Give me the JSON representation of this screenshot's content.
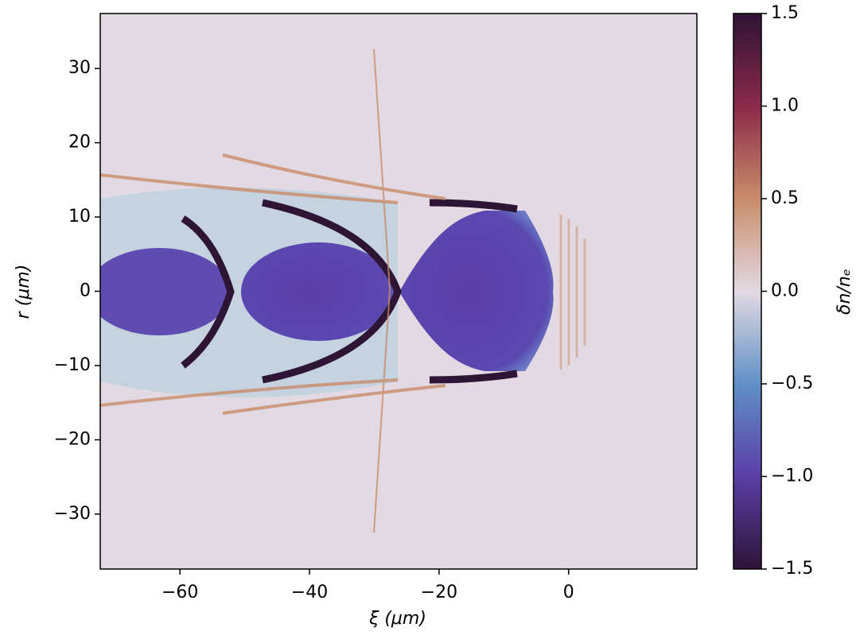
{
  "chart_data": {
    "type": "heatmap",
    "x_label": "ξ (μm)",
    "y_label": "r (μm)",
    "xlim": [
      -72.3,
      19.8
    ],
    "xticks": [
      {
        "value": -60,
        "label": "−60"
      },
      {
        "value": -40,
        "label": "−40"
      },
      {
        "value": -20,
        "label": "−20"
      },
      0
    ],
    "ylim": [
      -37.4,
      37.4
    ],
    "yticks": [
      30,
      20,
      10,
      0,
      {
        "value": -10,
        "label": "−10"
      },
      {
        "value": -20,
        "label": "−20"
      },
      {
        "value": -30,
        "label": "−30"
      }
    ],
    "colorbar": {
      "label": "δn/nₑ",
      "lim": [
        -1.5,
        1.5
      ],
      "ticks": [
        {
          "value": 1.5,
          "label": "1.5"
        },
        {
          "value": 1.0,
          "label": "1.0"
        },
        {
          "value": 0.5,
          "label": "0.5"
        },
        {
          "value": 0.0,
          "label": "0.0"
        },
        {
          "value": -0.5,
          "label": "−0.5"
        },
        {
          "value": -1.0,
          "label": "−1.0"
        },
        {
          "value": -1.5,
          "label": "−1.5"
        }
      ],
      "colors": [
        "#2d1537",
        "#5b3ea6",
        "#6090c6",
        "#e2d9e2",
        "#c88c6a",
        "#8b2a4b",
        "#2e1435"
      ]
    }
  }
}
